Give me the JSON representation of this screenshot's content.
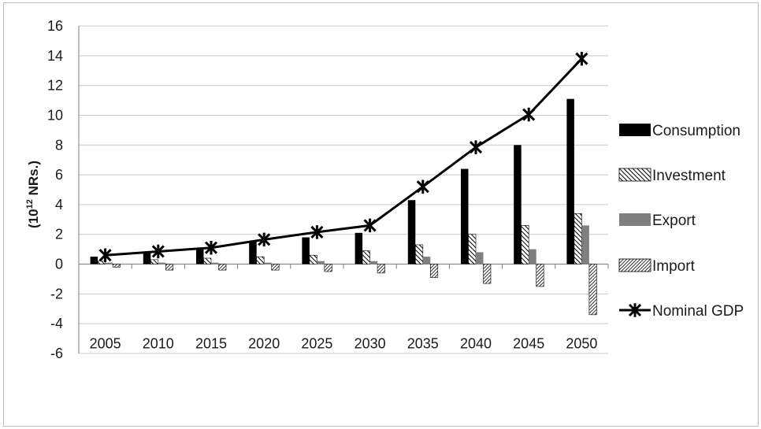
{
  "chart_data": {
    "type": "bar",
    "ylabel": "(10",
    "ylabel_sup": "12",
    "ylabel_rest": " NRs.)",
    "ylim": [
      -6,
      16
    ],
    "ytick_step": 2,
    "yticks": [
      "16",
      "14",
      "12",
      "10",
      "8",
      "6",
      "4",
      "2",
      "0",
      "-2",
      "-4",
      "-6"
    ],
    "categories": [
      "2005",
      "2010",
      "2015",
      "2020",
      "2025",
      "2030",
      "2035",
      "2040",
      "2045",
      "2050"
    ],
    "grid": true,
    "legend_position": "right",
    "series": [
      {
        "name": "Consumption",
        "kind": "bar",
        "style": "solid",
        "color": "#000000",
        "values": [
          0.5,
          0.8,
          1.1,
          1.5,
          1.8,
          2.1,
          4.3,
          6.4,
          8.0,
          11.1
        ]
      },
      {
        "name": "Investment",
        "kind": "bar",
        "style": "hatch-diagonal",
        "color": "#000000",
        "values": [
          0.2,
          0.3,
          0.4,
          0.5,
          0.6,
          0.9,
          1.3,
          2.0,
          2.6,
          3.4
        ]
      },
      {
        "name": "Export",
        "kind": "bar",
        "style": "solid",
        "color": "#7f7f7f",
        "values": [
          0.1,
          0.1,
          0.1,
          0.1,
          0.2,
          0.2,
          0.5,
          0.8,
          1.0,
          2.6
        ]
      },
      {
        "name": "Import",
        "kind": "bar",
        "style": "hatch-dense",
        "color": "#000000",
        "values": [
          -0.2,
          -0.4,
          -0.4,
          -0.4,
          -0.5,
          -0.6,
          -0.9,
          -1.3,
          -1.5,
          -3.4
        ]
      },
      {
        "name": "Nominal GDP",
        "kind": "line",
        "marker": "asterisk",
        "color": "#000000",
        "values": [
          0.6,
          0.85,
          1.1,
          1.65,
          2.15,
          2.6,
          5.2,
          7.85,
          10.05,
          13.8
        ]
      }
    ]
  }
}
